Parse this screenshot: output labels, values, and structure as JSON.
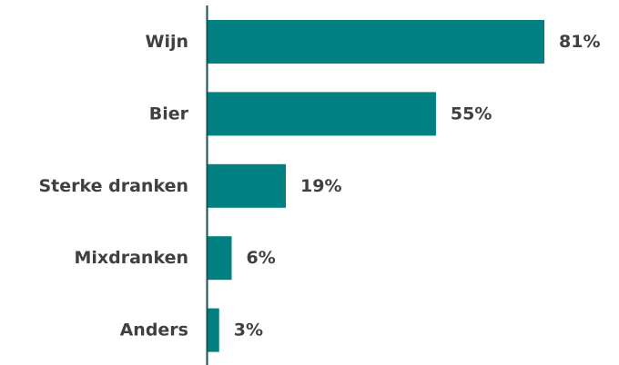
{
  "chart_data": {
    "type": "bar",
    "orientation": "horizontal",
    "categories": [
      "Wijn",
      "Bier",
      "Sterke dranken",
      "Mixdranken",
      "Anders"
    ],
    "values": [
      81,
      55,
      19,
      6,
      3
    ],
    "value_labels": [
      "81%",
      "55%",
      "19%",
      "6%",
      "3%"
    ],
    "unit": "%",
    "title": "",
    "xlabel": "",
    "ylabel": "",
    "xlim": [
      0,
      81
    ],
    "grid": false,
    "legend": "none",
    "colors": {
      "bar": "#008080",
      "axis": "#1a4f52",
      "text": "#404040"
    }
  }
}
